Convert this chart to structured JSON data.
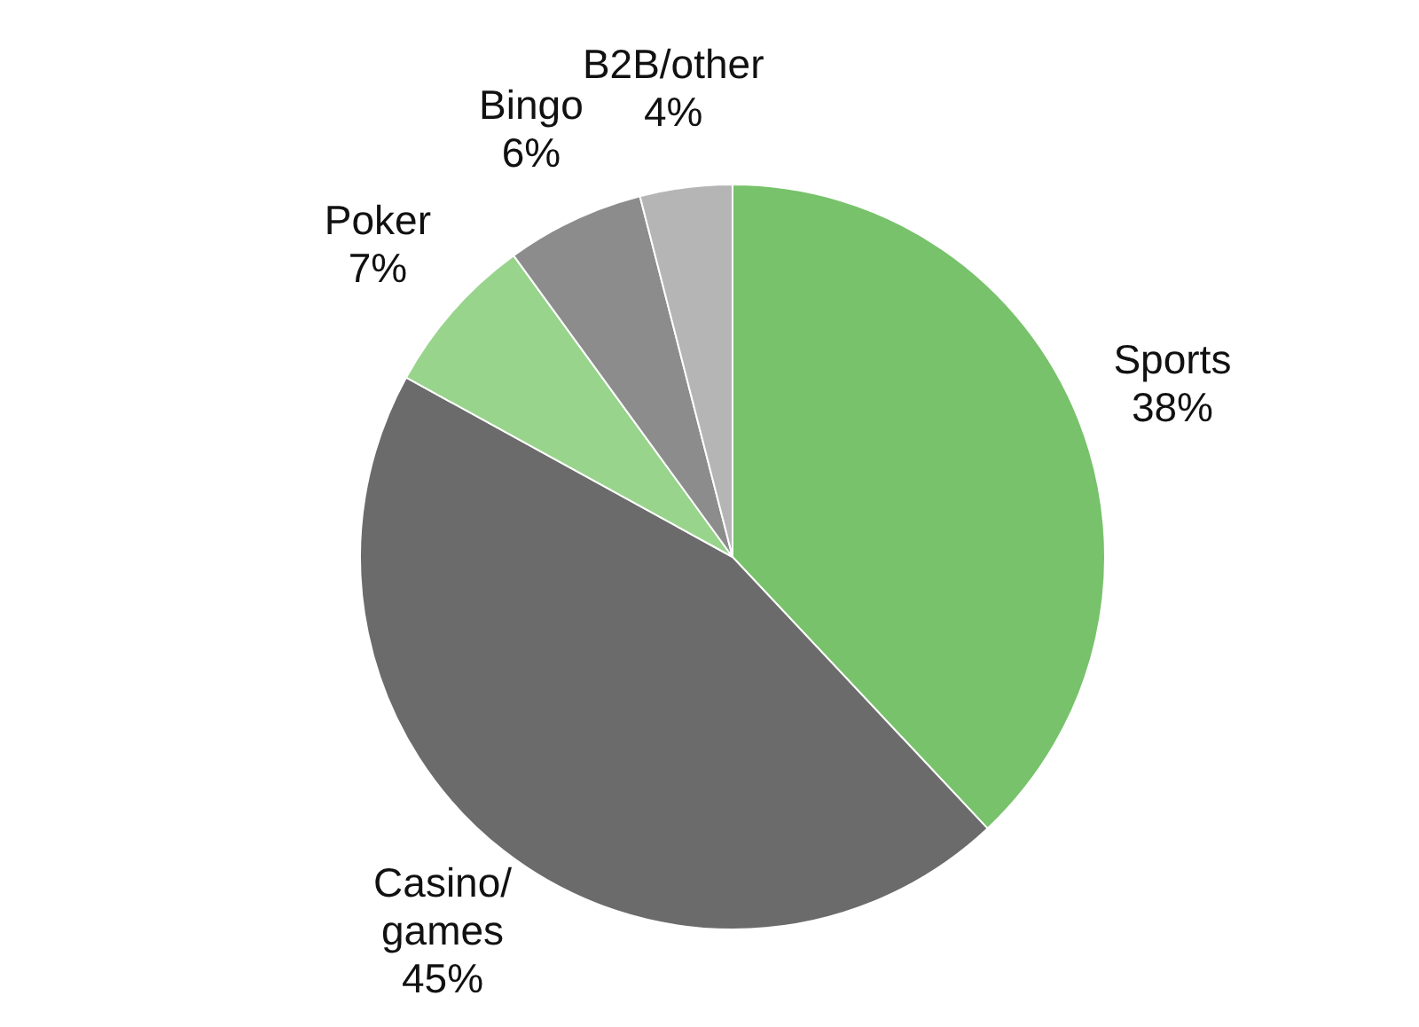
{
  "chart_data": {
    "type": "pie",
    "categories": [
      "Sports",
      "Casino/games",
      "Poker",
      "Bingo",
      "B2B/other"
    ],
    "values": [
      38,
      45,
      7,
      6,
      4
    ],
    "value_labels": [
      "38%",
      "45%",
      "7%",
      "6%",
      "4%"
    ],
    "colors": [
      "#77c26a",
      "#6b6b6b",
      "#98d48c",
      "#8c8c8c",
      "#b5b5b5"
    ]
  }
}
